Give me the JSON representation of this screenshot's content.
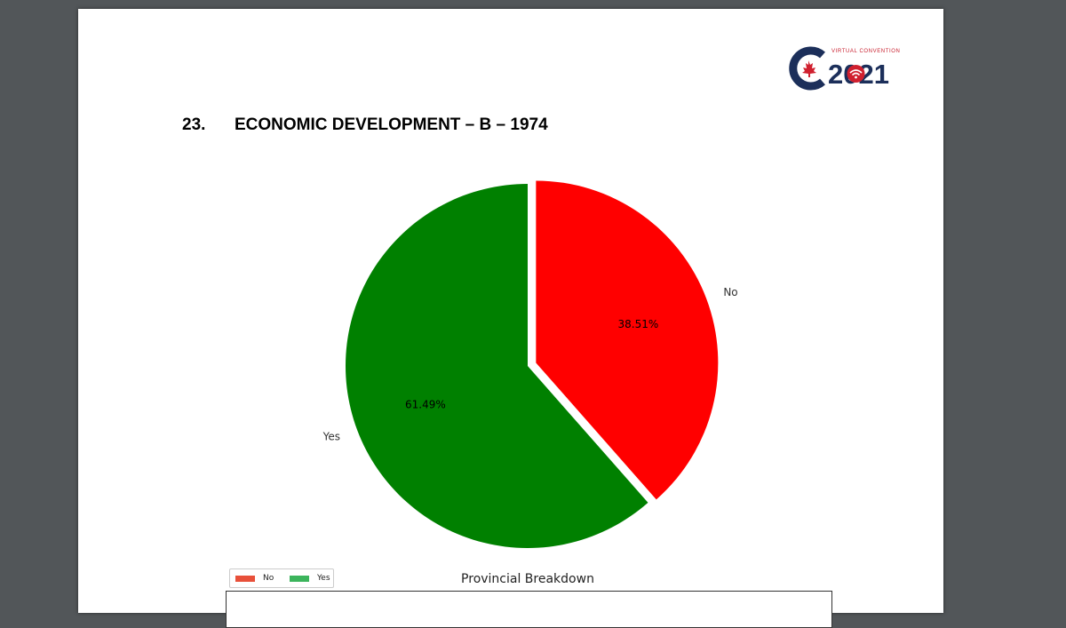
{
  "document": {
    "section_number": "23.",
    "section_title": "ECONOMIC DEVELOPMENT – B – 1974",
    "logo": {
      "tagline": "VIRTUAL CONVENTION",
      "year_text": "2021",
      "icon": "maple-leaf-icon"
    }
  },
  "chart_data": {
    "type": "pie",
    "slices": [
      {
        "label": "No",
        "value": 38.51,
        "display": "38.51%",
        "color": "#ff0000",
        "exploded": true
      },
      {
        "label": "Yes",
        "value": 61.49,
        "display": "61.49%",
        "color": "#008000",
        "exploded": false
      }
    ]
  },
  "breakdown": {
    "title": "Provincial Breakdown",
    "legend": [
      {
        "label": "No",
        "color": "#e8503a"
      },
      {
        "label": "Yes",
        "color": "#3cb45c"
      }
    ]
  },
  "colors": {
    "viewer_background": "#525659",
    "logo_navy": "#1c2f5a",
    "logo_red": "#d0202f"
  }
}
